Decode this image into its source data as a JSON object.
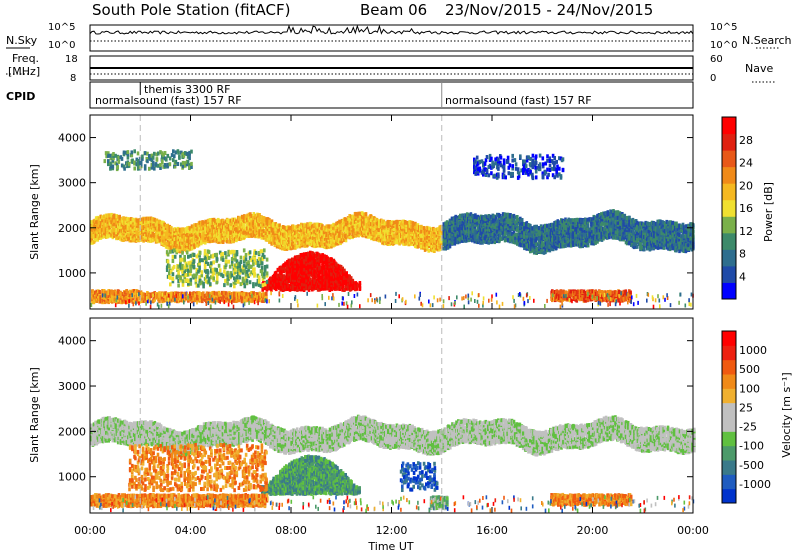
{
  "chart_data": {
    "type": "heatmap",
    "title": "South Pole Station (fitACF)",
    "beam_label": "Beam 06",
    "date_range": "23/Nov/2015 - 24/Nov/2015",
    "xlabel": "Time UT",
    "x_ticks": [
      "00:00",
      "04:00",
      "08:00",
      "12:00",
      "16:00",
      "20:00",
      "00:00"
    ],
    "xlim_hours": [
      0,
      24
    ],
    "header": {
      "nsky": {
        "label": "N.Sky",
        "ticks": [
          "10^5",
          "10^0"
        ]
      },
      "nsearch": {
        "label": "N.Search",
        "ticks": [
          "10^5",
          "10^0"
        ]
      },
      "freq": {
        "label": "Freq.",
        "unit": "[MHz]",
        "ticks": [
          18,
          8
        ]
      },
      "nave": {
        "label": "Nave",
        "ticks": [
          60,
          0
        ]
      },
      "cpid": {
        "label": "CPID",
        "segments": [
          {
            "start": 0,
            "end": 14,
            "text": "normalsound (fast) 157 RF"
          },
          {
            "start": 14,
            "end": 24,
            "text": "normalsound (fast) 157 RF"
          }
        ],
        "marker": {
          "at": 2,
          "text": "themis 3300 RF"
        }
      }
    },
    "panels": [
      {
        "name": "power",
        "ylabel": "Slant Range [km]",
        "ylim": [
          200,
          4500
        ],
        "y_ticks": [
          1000,
          2000,
          3000,
          4000
        ],
        "colorbar_label": "Power [dB]",
        "colorbar_ticks": [
          "28",
          "24",
          "20",
          "16",
          "12",
          "8",
          "4"
        ],
        "colors": [
          "#0000ff",
          "#1f4aa8",
          "#2e6e8e",
          "#3d8a6a",
          "#7ab04a",
          "#f0e030",
          "#f5b820",
          "#f08a18",
          "#e85818",
          "#e02010",
          "#ff0000"
        ]
      },
      {
        "name": "velocity",
        "ylabel": "Slant Range [km]",
        "ylim": [
          200,
          4500
        ],
        "y_ticks": [
          1000,
          2000,
          3000,
          4000
        ],
        "colorbar_label": "Velocity [m s⁻¹]",
        "colorbar_ticks": [
          "1000",
          "500",
          "100",
          "25",
          "-25",
          "-100",
          "-500",
          "-1000"
        ],
        "colors": [
          "#0033cc",
          "#1f5cc0",
          "#3a7a8a",
          "#4c9a6a",
          "#60c040",
          "#c0c0c0",
          "#c0c0c0",
          "#f0b030",
          "#f08a18",
          "#f05a10",
          "#ee2010",
          "#ff0000"
        ]
      }
    ],
    "structures": {
      "power": [
        {
          "t0": 0.0,
          "t1": 14.0,
          "r0": 1650,
          "r1": 2150,
          "level": 6,
          "wavy": true
        },
        {
          "t0": 14.0,
          "t1": 24.0,
          "r0": 1600,
          "r1": 2200,
          "level": 2,
          "wavy": true
        },
        {
          "t0": 6.8,
          "t1": 10.7,
          "r0": 620,
          "r1": 1450,
          "level": 10,
          "blob": true
        },
        {
          "t0": 0.0,
          "t1": 2.0,
          "r0": 350,
          "r1": 600,
          "level": 7
        },
        {
          "t0": 2.0,
          "t1": 7.0,
          "r0": 370,
          "r1": 560,
          "level": 7
        },
        {
          "t0": 18.3,
          "t1": 21.5,
          "r0": 380,
          "r1": 600,
          "level": 8
        },
        {
          "t0": 3.0,
          "t1": 7.0,
          "r0": 700,
          "r1": 1500,
          "level": 4,
          "sparse": true
        },
        {
          "t0": 0.5,
          "t1": 4.0,
          "r0": 3300,
          "r1": 3700,
          "level": 3,
          "sparse": true
        },
        {
          "t0": 15.2,
          "t1": 18.8,
          "r0": 3100,
          "r1": 3600,
          "level": 1,
          "sparse": true
        }
      ],
      "velocity": [
        {
          "t0": 0.0,
          "t1": 24.0,
          "r0": 1650,
          "r1": 2150,
          "level": 5,
          "wavy": true
        },
        {
          "t0": 6.8,
          "t1": 10.7,
          "r0": 620,
          "r1": 1450,
          "level": 3,
          "blob": true
        },
        {
          "t0": 0.0,
          "t1": 7.0,
          "r0": 350,
          "r1": 600,
          "level": 8
        },
        {
          "t0": 1.5,
          "t1": 7.0,
          "r0": 700,
          "r1": 1700,
          "level": 8,
          "sparse": true
        },
        {
          "t0": 18.3,
          "t1": 21.5,
          "r0": 380,
          "r1": 600,
          "level": 8
        },
        {
          "t0": 12.3,
          "t1": 13.8,
          "r0": 700,
          "r1": 1300,
          "level": 1,
          "sparse": true
        },
        {
          "t0": 13.5,
          "t1": 14.2,
          "r0": 300,
          "r1": 550,
          "level": 4
        }
      ]
    }
  }
}
